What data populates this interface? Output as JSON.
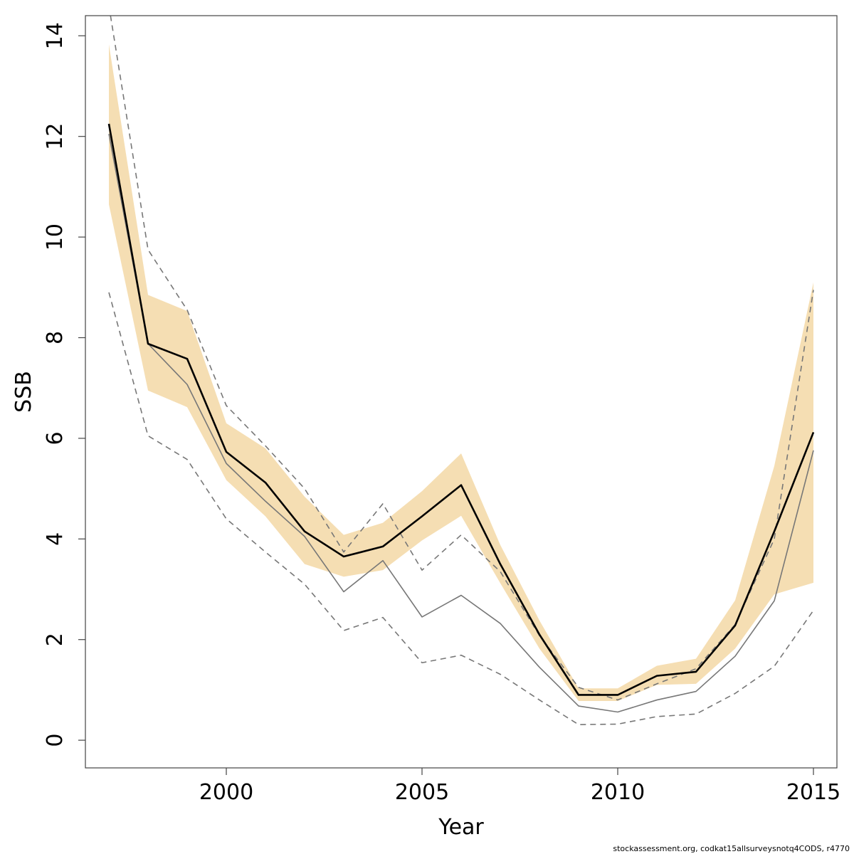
{
  "chart_data": {
    "type": "line",
    "title": "",
    "xlabel": "Year",
    "ylabel": "SSB",
    "xlim": [
      1996.4,
      2015.6
    ],
    "ylim": [
      -0.55,
      14.4
    ],
    "xticks": [
      2000,
      2005,
      2010,
      2015
    ],
    "yticks": [
      0,
      2,
      4,
      6,
      8,
      10,
      12,
      14
    ],
    "grid": false,
    "legend": "none",
    "x": [
      1997,
      1998,
      1999,
      2000,
      2001,
      2002,
      2003,
      2004,
      2005,
      2006,
      2007,
      2008,
      2009,
      2010,
      2011,
      2012,
      2013,
      2014,
      2015
    ],
    "band": {
      "color": "#f5deb3",
      "lower": [
        10.65,
        6.95,
        6.62,
        5.17,
        4.45,
        3.5,
        3.25,
        3.38,
        3.97,
        4.46,
        3.12,
        1.82,
        0.78,
        0.78,
        1.1,
        1.12,
        1.82,
        2.9,
        3.13
      ],
      "upper": [
        13.83,
        8.85,
        8.53,
        6.3,
        5.8,
        4.84,
        4.08,
        4.32,
        4.95,
        5.7,
        3.88,
        2.38,
        1.03,
        1.03,
        1.48,
        1.62,
        2.78,
        5.45,
        9.1
      ]
    },
    "series": [
      {
        "style": "solid",
        "color": "#000000",
        "width": 2.6,
        "values": [
          12.25,
          7.88,
          7.58,
          5.73,
          5.12,
          4.15,
          3.65,
          3.85,
          4.45,
          5.07,
          3.5,
          2.1,
          0.9,
          0.9,
          1.28,
          1.36,
          2.28,
          4.15,
          6.12
        ]
      },
      {
        "style": "solid",
        "color": "#777777",
        "width": 1.6,
        "values": [
          12.05,
          7.88,
          7.07,
          5.5,
          4.75,
          4.05,
          2.95,
          3.57,
          2.45,
          2.88,
          2.32,
          1.45,
          0.68,
          0.56,
          0.8,
          0.97,
          1.67,
          2.77,
          5.76
        ]
      },
      {
        "style": "dashed",
        "color": "#777777",
        "width": 1.6,
        "values": [
          14.6,
          9.75,
          8.55,
          6.65,
          5.85,
          5.0,
          3.74,
          4.7,
          3.38,
          4.08,
          3.35,
          2.08,
          1.05,
          0.8,
          1.12,
          1.42,
          2.3,
          4.0,
          8.95
        ]
      },
      {
        "style": "dashed",
        "color": "#777777",
        "width": 1.6,
        "values": [
          8.9,
          6.05,
          5.58,
          4.4,
          3.74,
          3.1,
          2.18,
          2.44,
          1.54,
          1.69,
          1.31,
          0.8,
          0.31,
          0.32,
          0.47,
          0.52,
          0.93,
          1.47,
          2.58
        ]
      }
    ]
  },
  "footnote": "stockassessment.org, codkat15allsurveysnotq4CODS, r4770"
}
